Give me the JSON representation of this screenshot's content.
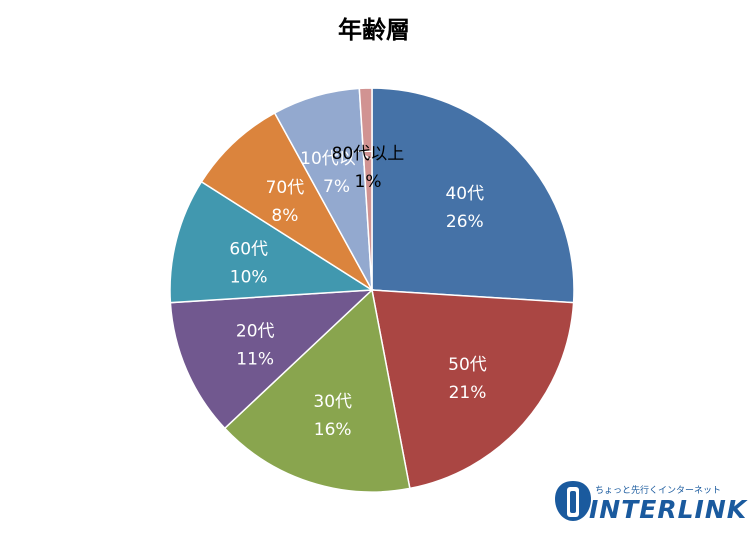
{
  "chart_data": {
    "type": "pie",
    "title": "年齢層",
    "categories": [
      "40代",
      "50代",
      "30代",
      "20代",
      "60代",
      "70代",
      "10代以下",
      "80代以上"
    ],
    "values": [
      26,
      21,
      16,
      11,
      10,
      8,
      7,
      1
    ],
    "value_labels": [
      "26%",
      "21%",
      "16%",
      "11%",
      "10%",
      "8%",
      "7%",
      "1%"
    ],
    "colors": [
      "#4572a7",
      "#aa4643",
      "#89a54e",
      "#71588f",
      "#4198af",
      "#db843d",
      "#93a9cf",
      "#d19392"
    ],
    "label_colors": [
      "#ffffff",
      "#ffffff",
      "#ffffff",
      "#ffffff",
      "#ffffff",
      "#ffffff",
      "#ffffff",
      "#000000"
    ],
    "start_angle": "12 o'clock",
    "direction": "clockwise",
    "legend": "none"
  },
  "logo": {
    "tagline": "ちょっと先行くインターネット",
    "name": "INTERLINK",
    "color": "#1a5a9e"
  }
}
